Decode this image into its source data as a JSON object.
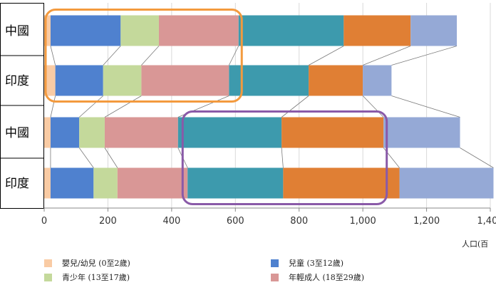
{
  "chart_data": {
    "type": "bar",
    "orientation": "horizontal",
    "stacked": true,
    "xlabel": "人口(百",
    "xlim": [
      0,
      1400
    ],
    "xticks": [
      "0",
      "200",
      "400",
      "600",
      "800",
      "1,000",
      "1,200",
      "1,400"
    ],
    "categories": [
      "中國",
      "印度",
      "中國",
      "印度"
    ],
    "grid": true,
    "series": [
      {
        "name": "嬰兒/幼兒 (0至2歲)",
        "color": "#f9cba4",
        "values": [
          20,
          35,
          20,
          20
        ]
      },
      {
        "name": "兒童 (3至12歲)",
        "color": "#4f81cf",
        "values": [
          220,
          150,
          90,
          135
        ]
      },
      {
        "name": "青少年 (13至17歲)",
        "color": "#c4d99b",
        "values": [
          120,
          120,
          80,
          75
        ]
      },
      {
        "name": "年輕成人 (18至29歲)",
        "color": "#d99796",
        "values": [
          250,
          275,
          230,
          220
        ]
      },
      {
        "name": "",
        "color": "#3d9aad",
        "values": [
          330,
          250,
          325,
          300
        ]
      },
      {
        "name": "",
        "color": "#e07f34",
        "values": [
          210,
          170,
          320,
          365
        ]
      },
      {
        "name": "",
        "color": "#95a9d6",
        "values": [
          145,
          90,
          240,
          295
        ]
      }
    ],
    "annotations": [
      {
        "type": "rounded-rect",
        "color": "#f39a3e",
        "rows": [
          0,
          1
        ],
        "x_range": [
          0,
          620
        ]
      },
      {
        "type": "rounded-rect",
        "color": "#8a5aa8",
        "rows": [
          2,
          3
        ],
        "x_range": [
          430,
          1075
        ]
      }
    ]
  },
  "legend": {
    "items": [
      {
        "label": "嬰兒/幼兒 (0至2歲)",
        "color": "#f9cba4"
      },
      {
        "label": "兒童 (3至12歲)",
        "color": "#4f81cf"
      },
      {
        "label": "青少年 (13至17歲)",
        "color": "#c4d99b"
      },
      {
        "label": "年輕成人 (18至29歲)",
        "color": "#d99796"
      }
    ]
  }
}
